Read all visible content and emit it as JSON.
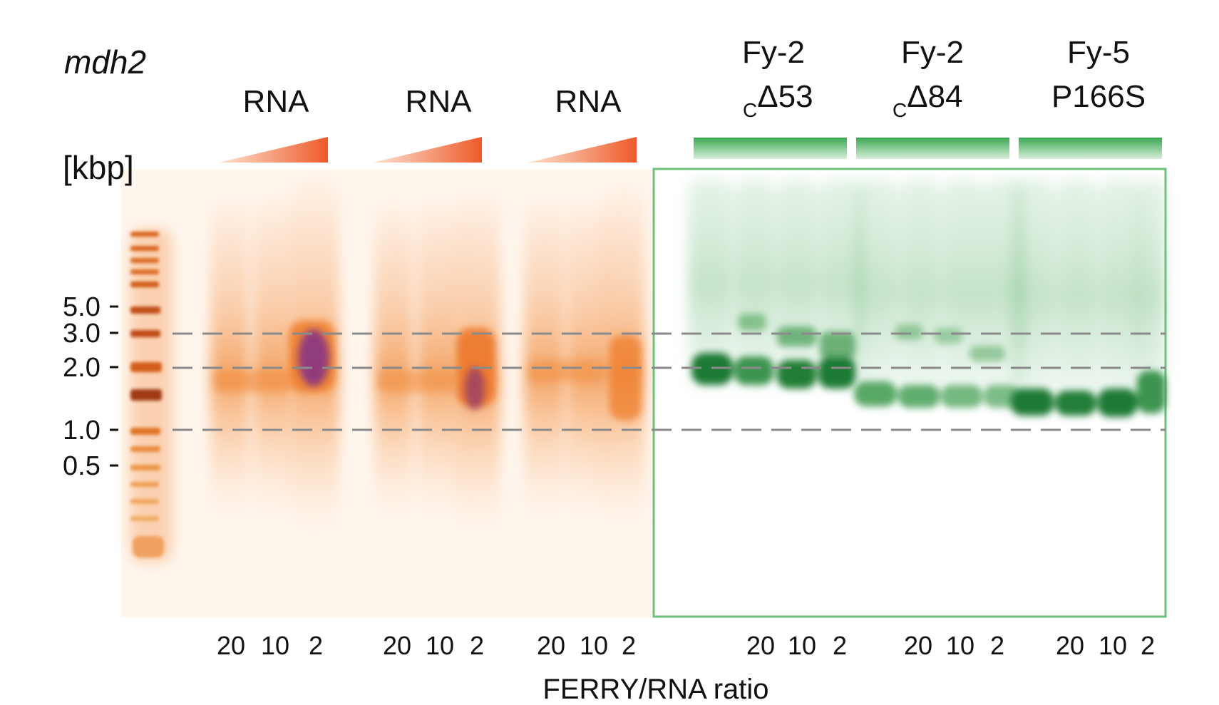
{
  "gene_label": "mdh2",
  "unit_label": "[kbp]",
  "xlabel": "FERRY/RNA ratio",
  "ladder_ticks": [
    "5.0",
    "3.0",
    "2.0",
    "1.0",
    "0.5"
  ],
  "rna_groups": [
    {
      "label": "RNA",
      "ratios": [
        "20",
        "10",
        "2"
      ]
    },
    {
      "label": "RNA",
      "ratios": [
        "20",
        "10",
        "2"
      ]
    },
    {
      "label": "RNA",
      "ratios": [
        "20",
        "10",
        "2"
      ]
    }
  ],
  "protein_groups": [
    {
      "line1": "Fy-2",
      "sub": "C",
      "line2": "Δ53",
      "ratios": [
        "20",
        "10",
        "2"
      ]
    },
    {
      "line1": "Fy-2",
      "sub": "C",
      "line2": "Δ84",
      "ratios": [
        "20",
        "10",
        "2"
      ]
    },
    {
      "line1": "Fy-5",
      "sub": "",
      "line2": "P166S",
      "ratios": [
        "20",
        "10",
        "2"
      ]
    }
  ],
  "colors": {
    "rna_stain": "#f07a2a",
    "rna_dark": "#6a2aa0",
    "protein_stain": "#2e9a44",
    "gel_border": "#6cc07a",
    "dashed_line": "#8a8a8a"
  }
}
